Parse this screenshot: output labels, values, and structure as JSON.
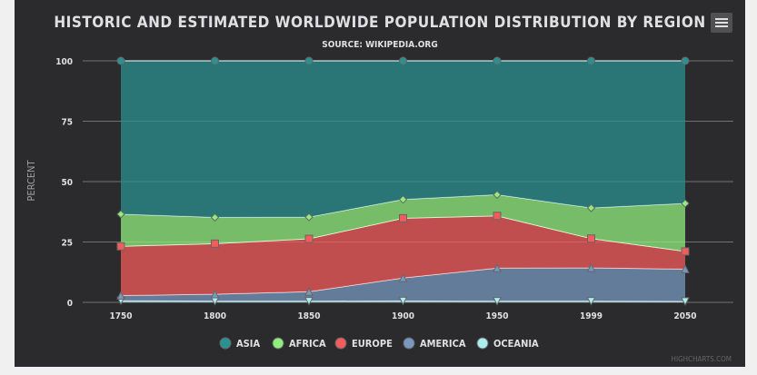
{
  "chart_data": {
    "type": "area",
    "stacking": "percent",
    "title": "HISTORIC AND ESTIMATED WORLDWIDE POPULATION DISTRIBUTION BY REGION",
    "subtitle": "SOURCE: WIKIPEDIA.ORG",
    "xlabel": "",
    "ylabel": "PERCENT",
    "categories": [
      "1750",
      "1800",
      "1850",
      "1900",
      "1950",
      "1999",
      "2050"
    ],
    "ylim": [
      0,
      100
    ],
    "yticks": [
      0,
      25,
      50,
      75,
      100
    ],
    "grid": true,
    "legend_position": "bottom",
    "series": [
      {
        "name": "Asia",
        "color": "#2b908f",
        "marker": "circle",
        "values": [
          63.5,
          64.8,
          64.7,
          57.4,
          55.4,
          60.9,
          59.1
        ]
      },
      {
        "name": "Africa",
        "color": "#90ee7e",
        "marker": "diamond",
        "values": [
          13.3,
          10.9,
          9.0,
          7.8,
          8.8,
          12.7,
          19.9
        ]
      },
      {
        "name": "Europe",
        "color": "#f45b5b",
        "marker": "square",
        "values": [
          20.4,
          20.9,
          21.9,
          24.7,
          21.6,
          12.1,
          7.3
        ]
      },
      {
        "name": "America",
        "color": "#7798bf",
        "marker": "triangle",
        "values": [
          2.1,
          2.9,
          3.9,
          9.5,
          13.7,
          13.8,
          13.4
        ]
      },
      {
        "name": "Oceania",
        "color": "#aaeeee",
        "marker": "triangle-down",
        "values": [
          0.7,
          0.5,
          0.5,
          0.6,
          0.5,
          0.5,
          0.4
        ]
      }
    ]
  },
  "credits": "HIGHCHARTS.COM"
}
